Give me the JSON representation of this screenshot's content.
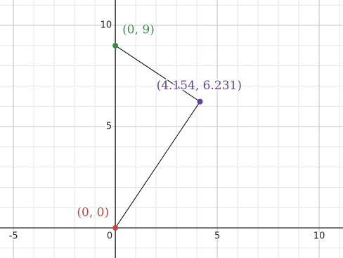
{
  "chart_data": {
    "type": "scatter",
    "x": [
      0,
      4.154,
      0
    ],
    "series": [
      {
        "values": [
          0,
          6.231,
          9
        ],
        "point_colors": [
          "#c74440",
          "#6042a6",
          "#388c46"
        ],
        "line_color": "#000000",
        "value_labels": [
          "(0, 0)",
          "(4.154, 6.231)",
          "(0, 9)"
        ]
      }
    ],
    "xlim": [
      -5.66,
      11.17
    ],
    "ylim": [
      -1.49,
      11.25
    ],
    "xticks": [
      -5,
      0,
      5,
      10
    ],
    "yticks": [
      5,
      10
    ],
    "grid": true,
    "minor_grid": true
  }
}
